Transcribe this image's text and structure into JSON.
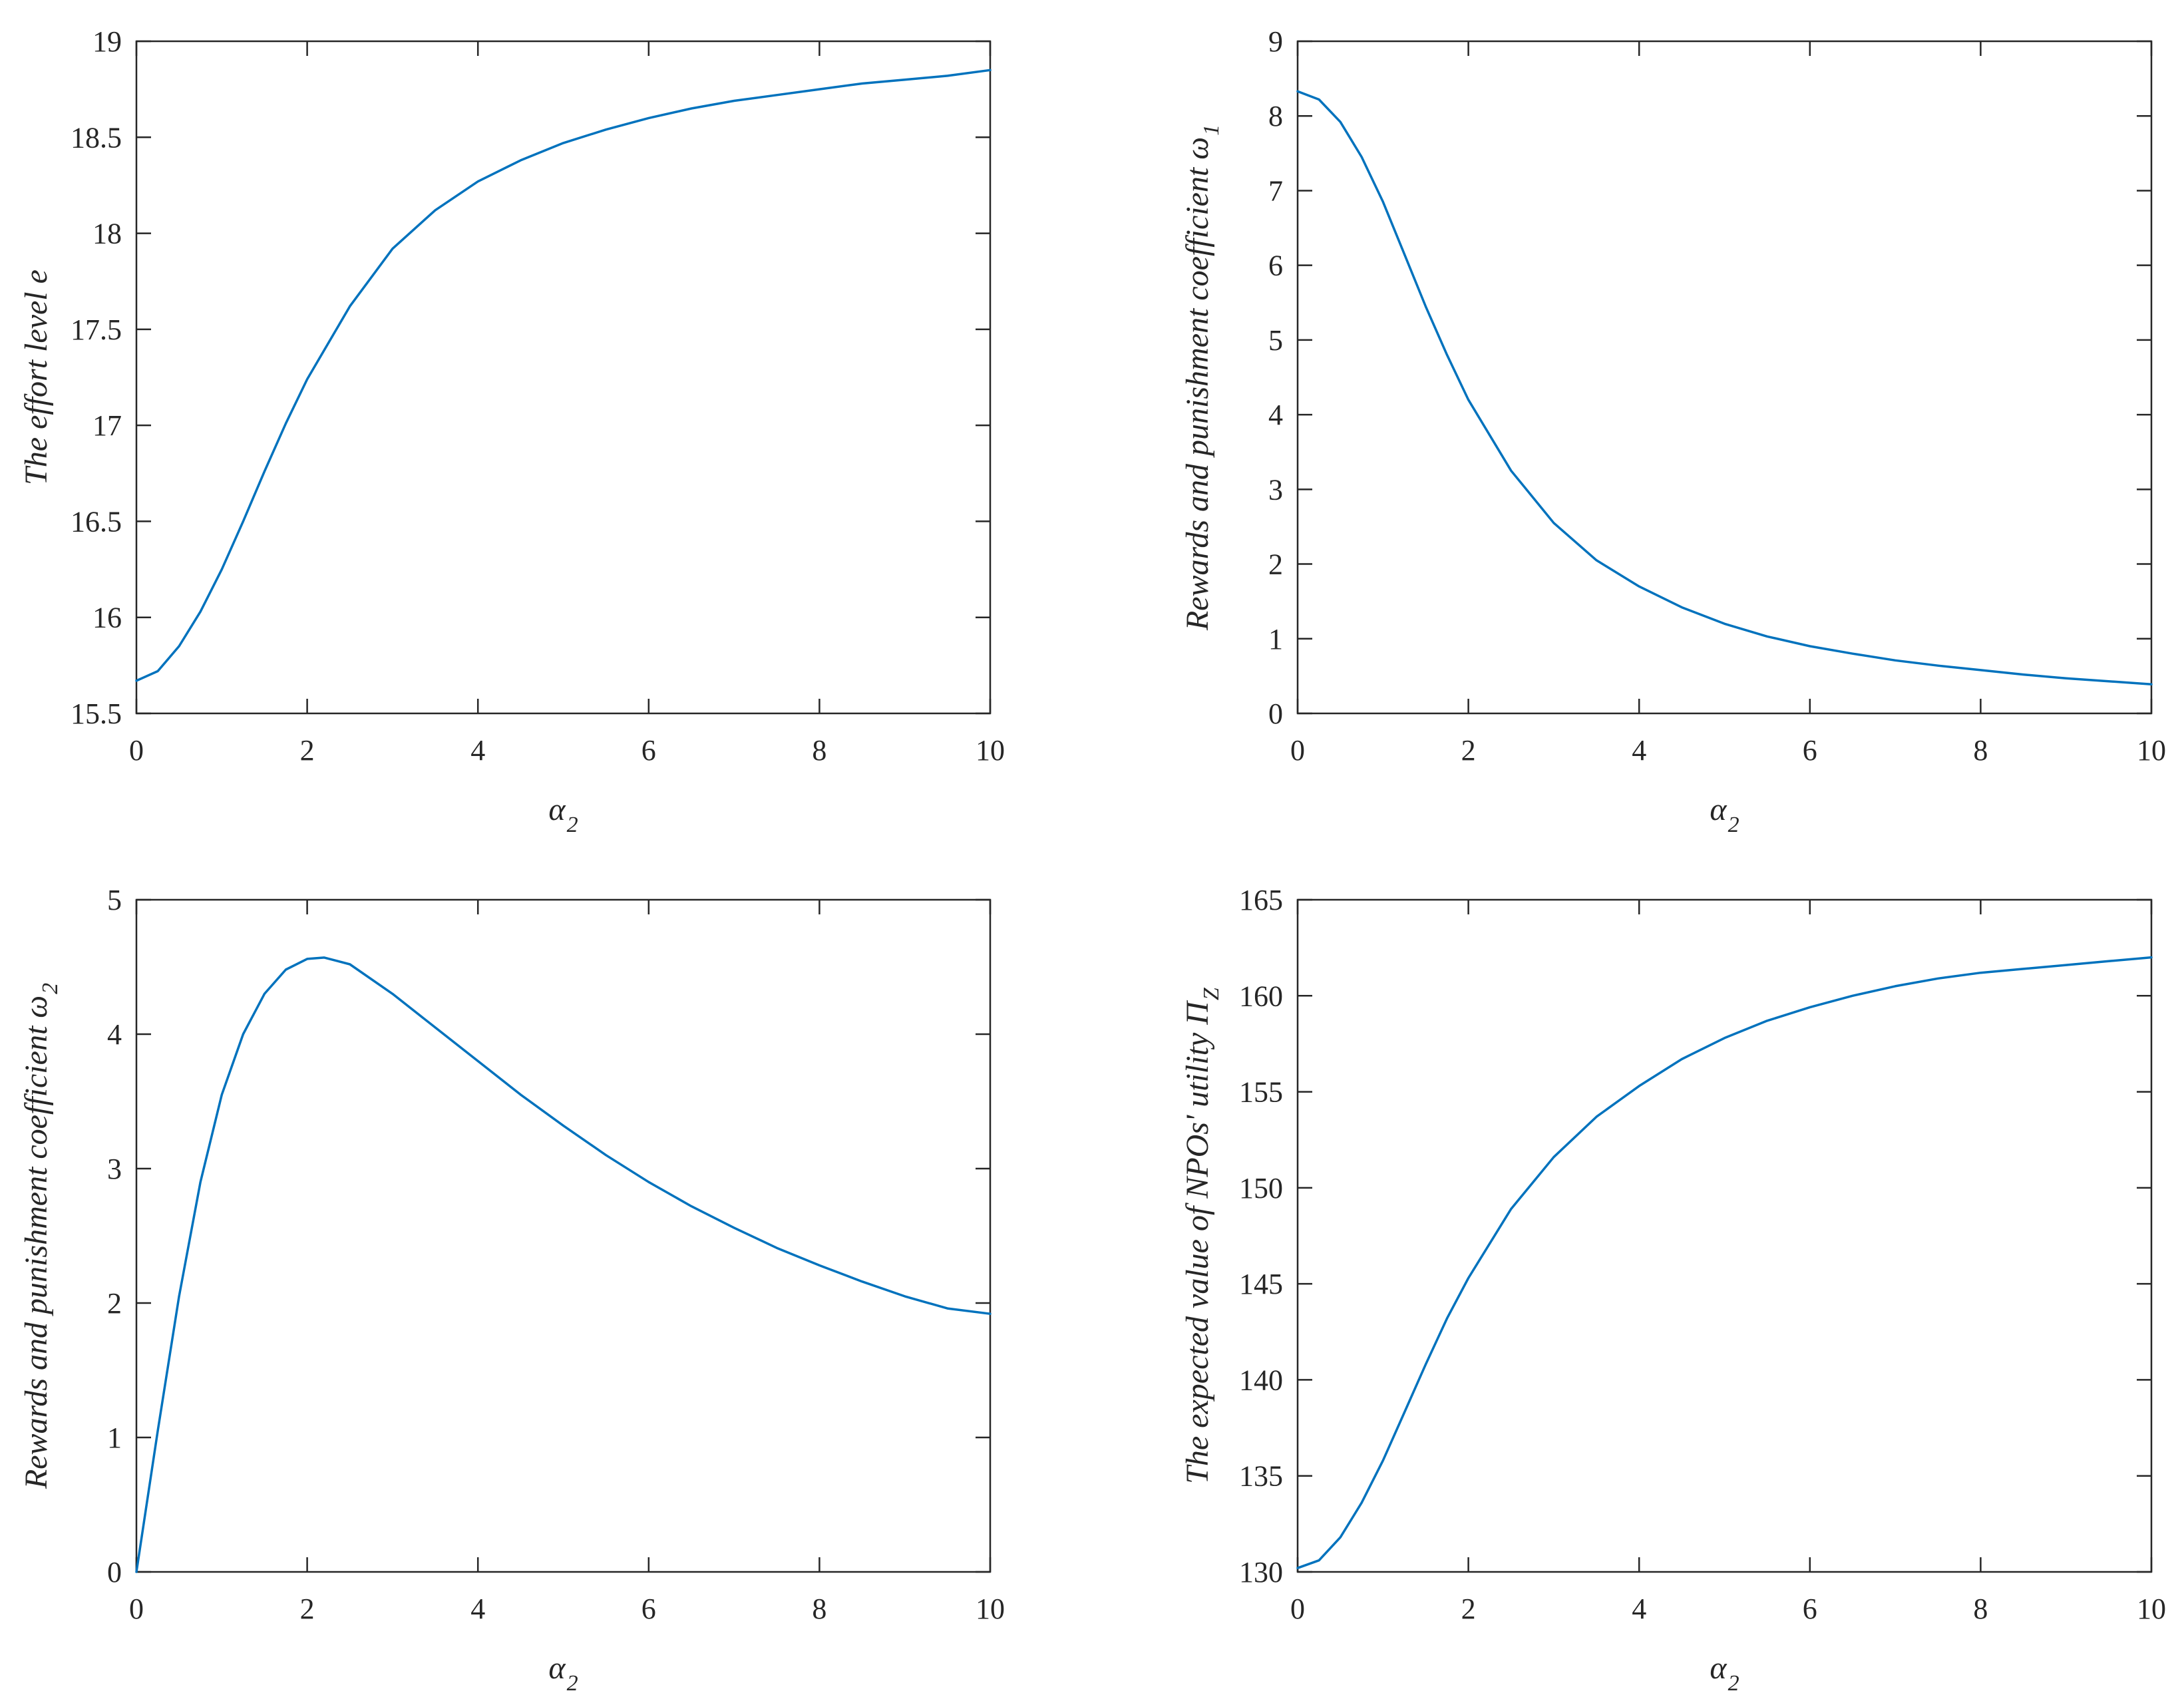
{
  "figure": {
    "line_color": "#0072BD",
    "axis_color": "#262626",
    "background": "#ffffff"
  },
  "chart_data": [
    {
      "type": "line",
      "position": "top-left",
      "xlabel": "α",
      "xlabel_sub": "2",
      "ylabel": "The effort level e",
      "ylabel_sub": "",
      "xlim": [
        0,
        10
      ],
      "ylim": [
        15.5,
        19
      ],
      "xticks": [
        0,
        2,
        4,
        6,
        8,
        10
      ],
      "yticks": [
        15.5,
        16,
        16.5,
        17,
        17.5,
        18,
        18.5,
        19
      ],
      "ytick_labels": [
        "15.5",
        "16",
        "16.5",
        "17",
        "17.5",
        "18",
        "18.5",
        "19"
      ],
      "grid": false,
      "series": [
        {
          "x": [
            0,
            0.25,
            0.5,
            0.75,
            1,
            1.25,
            1.5,
            1.75,
            2,
            2.5,
            3,
            3.5,
            4,
            4.5,
            5,
            5.5,
            6,
            6.5,
            7,
            7.5,
            8,
            8.5,
            9,
            9.5,
            10
          ],
          "y": [
            15.67,
            15.72,
            15.85,
            16.03,
            16.25,
            16.5,
            16.76,
            17.01,
            17.24,
            17.62,
            17.92,
            18.12,
            18.27,
            18.38,
            18.47,
            18.54,
            18.6,
            18.65,
            18.69,
            18.72,
            18.75,
            18.78,
            18.8,
            18.82,
            18.85
          ]
        }
      ]
    },
    {
      "type": "line",
      "position": "top-right",
      "xlabel": "α",
      "xlabel_sub": "2",
      "ylabel": "Rewards and punishment coefficient ω",
      "ylabel_sub": "1",
      "xlim": [
        0,
        10
      ],
      "ylim": [
        0,
        9
      ],
      "xticks": [
        0,
        2,
        4,
        6,
        8,
        10
      ],
      "yticks": [
        0,
        1,
        2,
        3,
        4,
        5,
        6,
        7,
        8,
        9
      ],
      "ytick_labels": [
        "0",
        "1",
        "2",
        "3",
        "4",
        "5",
        "6",
        "7",
        "8",
        "9"
      ],
      "grid": false,
      "series": [
        {
          "x": [
            0,
            0.25,
            0.5,
            0.75,
            1,
            1.25,
            1.5,
            1.75,
            2,
            2.5,
            3,
            3.5,
            4,
            4.5,
            5,
            5.5,
            6,
            6.5,
            7,
            7.5,
            8,
            8.5,
            9,
            9.5,
            10
          ],
          "y": [
            8.33,
            8.22,
            7.92,
            7.45,
            6.85,
            6.15,
            5.45,
            4.8,
            4.2,
            3.25,
            2.55,
            2.05,
            1.7,
            1.42,
            1.2,
            1.03,
            0.9,
            0.8,
            0.71,
            0.64,
            0.58,
            0.52,
            0.47,
            0.43,
            0.39
          ]
        }
      ]
    },
    {
      "type": "line",
      "position": "bottom-left",
      "xlabel": "α",
      "xlabel_sub": "2",
      "ylabel": "Rewards and punishment coefficient ω",
      "ylabel_sub": "2",
      "xlim": [
        0,
        10
      ],
      "ylim": [
        0,
        5
      ],
      "xticks": [
        0,
        2,
        4,
        6,
        8,
        10
      ],
      "yticks": [
        0,
        1,
        2,
        3,
        4,
        5
      ],
      "ytick_labels": [
        "0",
        "1",
        "2",
        "3",
        "4",
        "5"
      ],
      "grid": false,
      "series": [
        {
          "x": [
            0,
            0.25,
            0.5,
            0.75,
            1,
            1.25,
            1.5,
            1.75,
            2,
            2.2,
            2.5,
            3,
            3.5,
            4,
            4.5,
            5,
            5.5,
            6,
            6.5,
            7,
            7.5,
            8,
            8.5,
            9,
            9.5,
            10
          ],
          "y": [
            0,
            1.05,
            2.05,
            2.9,
            3.55,
            4.0,
            4.3,
            4.48,
            4.56,
            4.57,
            4.52,
            4.3,
            4.05,
            3.8,
            3.55,
            3.32,
            3.1,
            2.9,
            2.72,
            2.56,
            2.41,
            2.28,
            2.16,
            2.05,
            1.96,
            1.92
          ]
        }
      ]
    },
    {
      "type": "line",
      "position": "bottom-right",
      "xlabel": "α",
      "xlabel_sub": "2",
      "ylabel": "The expected value of NPOs' utility Π",
      "ylabel_sub": "Z",
      "xlim": [
        0,
        10
      ],
      "ylim": [
        130,
        165
      ],
      "xticks": [
        0,
        2,
        4,
        6,
        8,
        10
      ],
      "yticks": [
        130,
        135,
        140,
        145,
        150,
        155,
        160,
        165
      ],
      "ytick_labels": [
        "130",
        "135",
        "140",
        "145",
        "150",
        "155",
        "160",
        "165"
      ],
      "grid": false,
      "series": [
        {
          "x": [
            0,
            0.25,
            0.5,
            0.75,
            1,
            1.25,
            1.5,
            1.75,
            2,
            2.5,
            3,
            3.5,
            4,
            4.5,
            5,
            5.5,
            6,
            6.5,
            7,
            7.5,
            8,
            8.5,
            9,
            9.5,
            10
          ],
          "y": [
            130.2,
            130.6,
            131.8,
            133.6,
            135.8,
            138.3,
            140.8,
            143.2,
            145.3,
            148.9,
            151.6,
            153.7,
            155.3,
            156.7,
            157.8,
            158.7,
            159.4,
            160.0,
            160.5,
            160.9,
            161.2,
            161.4,
            161.6,
            161.8,
            162.0
          ]
        }
      ]
    }
  ]
}
